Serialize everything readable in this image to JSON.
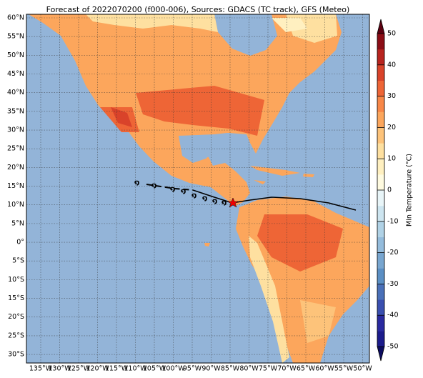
{
  "map": {
    "title": "Forecast of 2022070200 (f000-006), Sources: GDACS (TC track), GFS (Meteo)",
    "lat_labels": [
      "60°N",
      "55°N",
      "50°N",
      "45°N",
      "40°N",
      "35°N",
      "30°N",
      "25°N",
      "20°N",
      "15°N",
      "10°N",
      "5°N",
      "0°",
      "5°S",
      "10°S",
      "15°S",
      "20°S",
      "25°S",
      "30°S"
    ],
    "lon_labels": [
      "135°W",
      "130°W",
      "125°W",
      "120°W",
      "115°W",
      "110°W",
      "105°W",
      "100°W",
      "95°W",
      "90°W",
      "85°W",
      "80°W",
      "75°W",
      "70°W",
      "65°W",
      "60°W",
      "55°W",
      "50°W"
    ],
    "colorbar": {
      "label": "Min Temperature (°C)",
      "ticks": [
        -50,
        -40,
        -30,
        -20,
        -10,
        0,
        10,
        20,
        30,
        40,
        50
      ],
      "colors": [
        "#1c1c8c",
        "#2a2aa0",
        "#3a4fb0",
        "#4a70b8",
        "#5b8fc4",
        "#78a6d0",
        "#94bcdc",
        "#b0d2e6",
        "#cde5f0",
        "#e8f5f8",
        "#fffbe0",
        "#fff0c0",
        "#fee0a0",
        "#fdc37a",
        "#fca65c",
        "#f88748",
        "#ee6536",
        "#d9432a",
        "#b8241f",
        "#8c0d16"
      ],
      "under_color": "#0c0c60",
      "over_color": "#5c0010"
    }
  }
}
